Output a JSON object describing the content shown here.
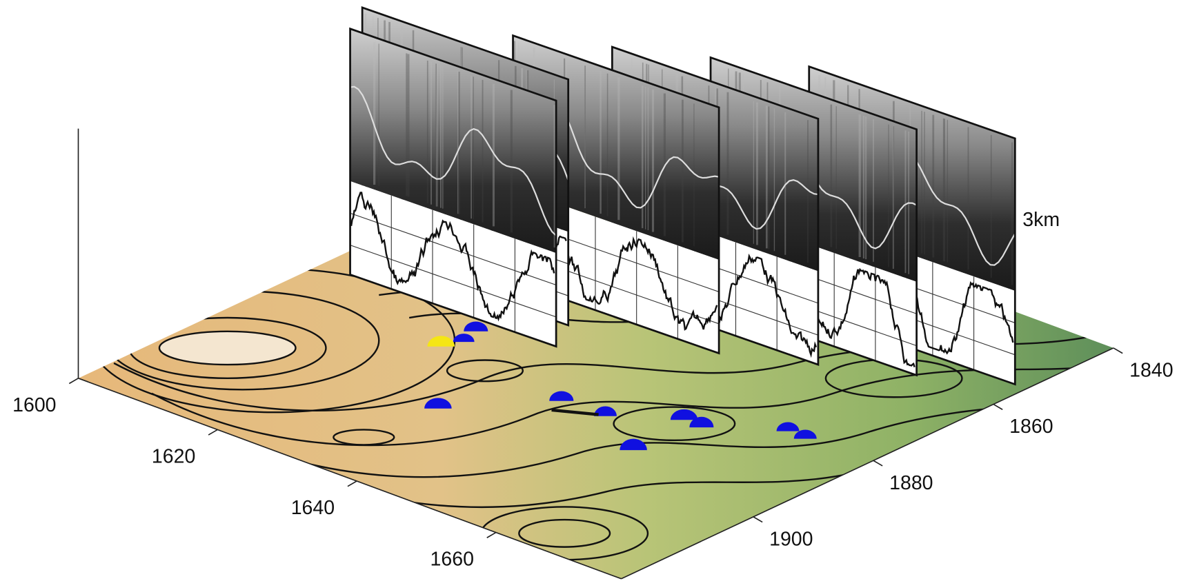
{
  "chart_data": {
    "type": "map3d",
    "xlim": [
      1600,
      1678
    ],
    "xticks": [
      1600,
      1620,
      1640,
      1660
    ],
    "ylim": [
      1840,
      1922
    ],
    "yticks": [
      1840,
      1860,
      1880,
      1900
    ],
    "annotation": "3km"
  }
}
